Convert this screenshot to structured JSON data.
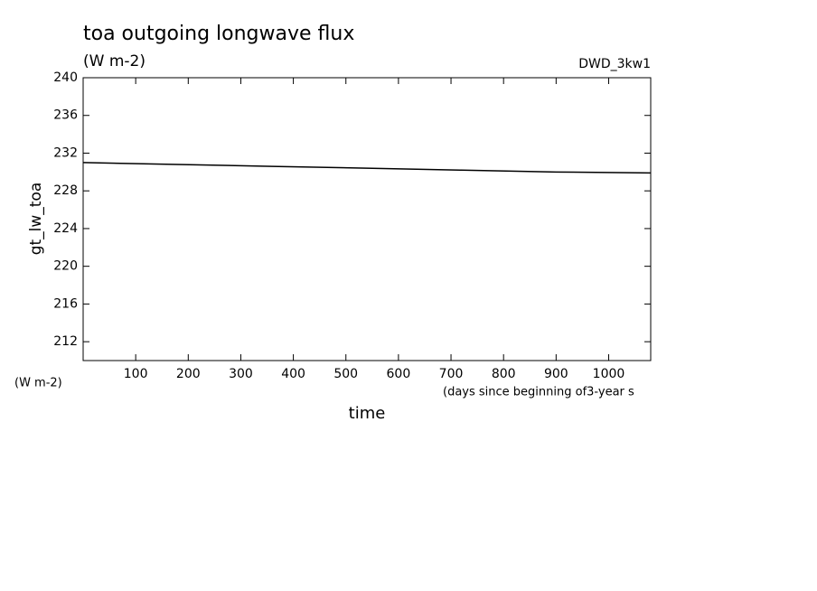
{
  "chart_data": {
    "type": "line",
    "title": "toa outgoing longwave flux",
    "subtitle": "(W m-2)",
    "dataset": "DWD_3kw1",
    "ylabel": "gt_lw_toa",
    "yunits": "(W m-2)",
    "xunits": "(days since beginning of3-year s",
    "xlabel": "time",
    "x": [
      0,
      180,
      360,
      540,
      720,
      900,
      1080
    ],
    "series": [
      {
        "name": "gt_lw_toa",
        "color": "#000000",
        "values": [
          231.0,
          230.8,
          230.6,
          230.4,
          230.2,
          230.0,
          229.9
        ]
      }
    ],
    "xlim": [
      0,
      1080
    ],
    "xticks": [
      100,
      200,
      300,
      400,
      500,
      600,
      700,
      800,
      900,
      1000
    ],
    "ylim": [
      210,
      240
    ],
    "yticks": [
      212,
      216,
      220,
      224,
      228,
      232,
      236,
      240
    ]
  }
}
